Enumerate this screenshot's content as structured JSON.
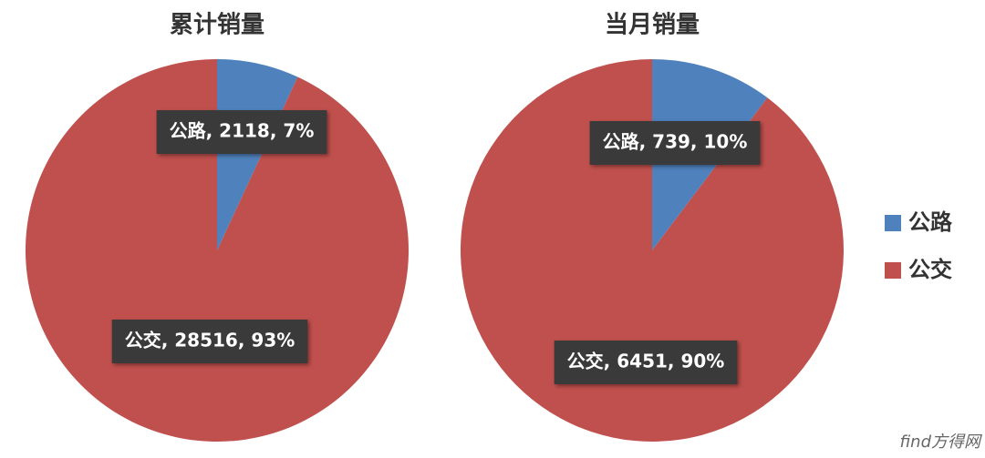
{
  "chart_data": [
    {
      "type": "pie",
      "title": "累计销量",
      "categories": [
        "公路",
        "公交"
      ],
      "values": [
        2118,
        28516
      ],
      "value_labels": [
        "公路, 2118, 7%",
        "公交, 28516, 93%"
      ],
      "colors": [
        "#4f81bd",
        "#c0504d"
      ]
    },
    {
      "type": "pie",
      "title": "当月销量",
      "categories": [
        "公路",
        "公交"
      ],
      "values": [
        739,
        6451
      ],
      "value_labels": [
        "公路, 739, 10%",
        "公交, 6451, 90%"
      ],
      "colors": [
        "#4f81bd",
        "#c0504d"
      ]
    }
  ],
  "watermark": "find方得网"
}
